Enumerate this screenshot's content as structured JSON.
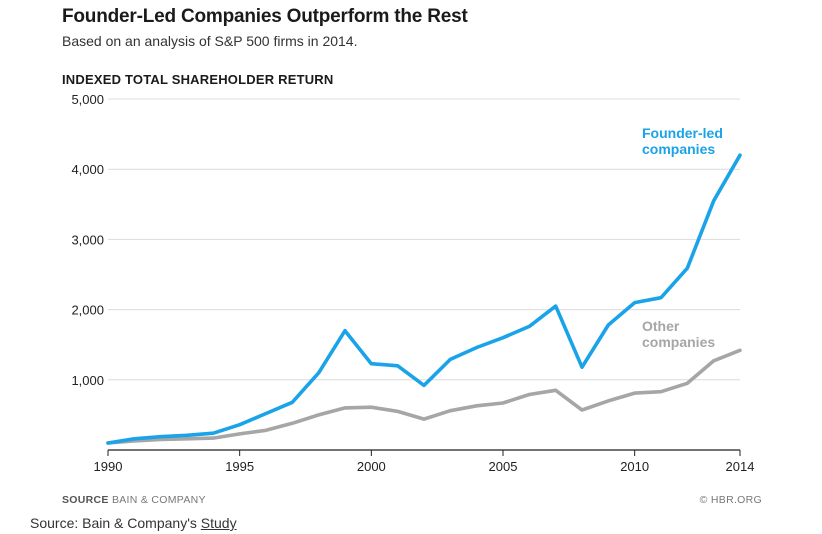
{
  "chart_data": {
    "type": "line",
    "title": "Founder-Led Companies Outperform the Rest",
    "subtitle": "Based on an analysis of S&P 500 firms in 2014.",
    "ylabel": "INDEXED TOTAL SHAREHOLDER RETURN",
    "xlabel": "",
    "ylim": [
      0,
      5000
    ],
    "xlim": [
      1990,
      2014
    ],
    "yticks": [
      1000,
      2000,
      3000,
      4000,
      5000
    ],
    "ytick_labels": [
      "1,000",
      "2,000",
      "3,000",
      "4,000",
      "5,000"
    ],
    "xticks": [
      1990,
      1995,
      2000,
      2005,
      2010,
      2014
    ],
    "xtick_labels": [
      "1990",
      "1995",
      "2000",
      "2005",
      "2010",
      "2014"
    ],
    "grid": true,
    "x": [
      1990,
      1991,
      1992,
      1993,
      1994,
      1995,
      1996,
      1997,
      1998,
      1999,
      2000,
      2001,
      2002,
      2003,
      2004,
      2005,
      2006,
      2007,
      2008,
      2009,
      2010,
      2011,
      2012,
      2013,
      2014
    ],
    "series": [
      {
        "name": "Founder-led companies",
        "label_lines": [
          "Founder-led",
          "companies"
        ],
        "color": "#1aa3e8",
        "values": [
          100,
          160,
          190,
          210,
          240,
          360,
          520,
          680,
          1100,
          1700,
          1230,
          1200,
          920,
          1290,
          1460,
          1600,
          1760,
          2050,
          1180,
          1780,
          2100,
          2170,
          2590,
          3550,
          4200
        ]
      },
      {
        "name": "Other companies",
        "label_lines": [
          "Other",
          "companies"
        ],
        "color": "#a6a6a6",
        "values": [
          100,
          130,
          150,
          160,
          170,
          230,
          280,
          380,
          500,
          600,
          610,
          550,
          440,
          560,
          630,
          670,
          790,
          850,
          570,
          700,
          810,
          830,
          950,
          1270,
          1420
        ]
      }
    ]
  },
  "footer": {
    "source_label": "SOURCE",
    "source_value": "BAIN & COMPANY",
    "copyright": "© HBR.ORG"
  },
  "caption": {
    "prefix": "Source: Bain & Company's ",
    "link_text": "Study"
  }
}
